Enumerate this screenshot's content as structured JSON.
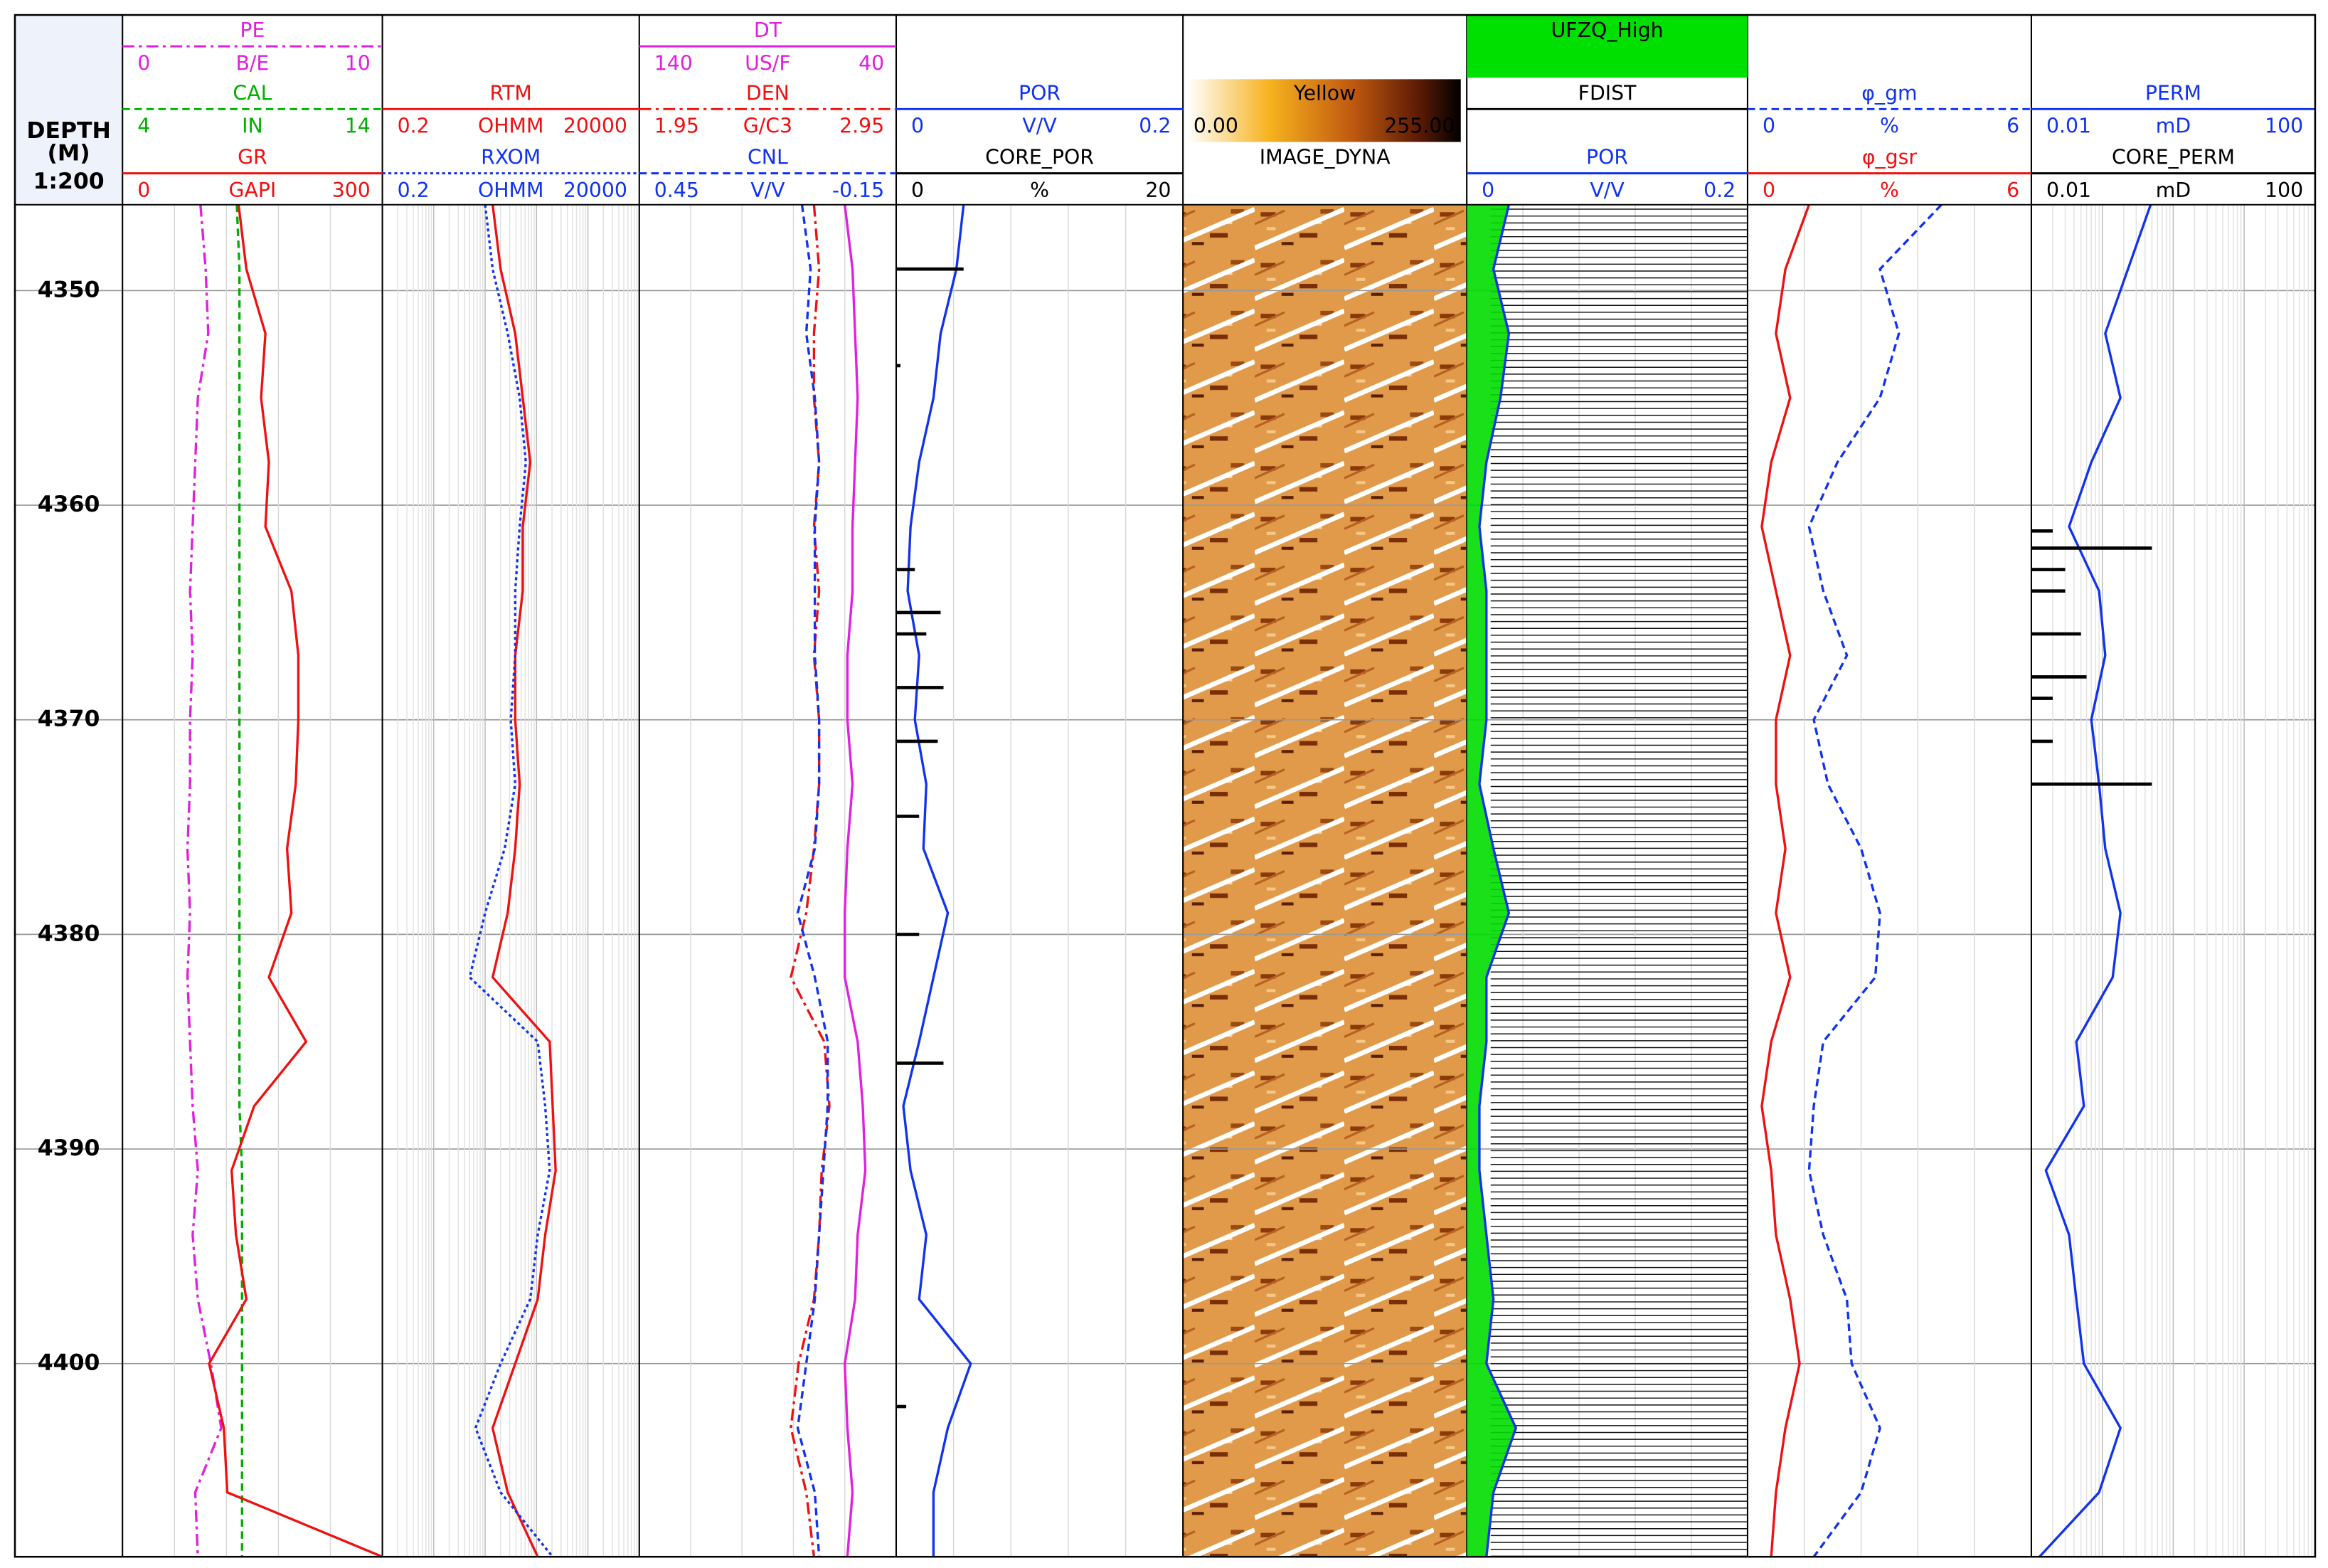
{
  "chart_data": {
    "type": "well-log",
    "depth_header": [
      "DEPTH",
      "(M)",
      "1:200"
    ],
    "ylim": [
      4346,
      4409
    ],
    "yticks": [
      4350,
      4360,
      4370,
      4380,
      4390,
      4400
    ],
    "depth": [
      4346,
      4349,
      4352,
      4355,
      4358,
      4361,
      4364,
      4367,
      4370,
      4373,
      4376,
      4379,
      4382,
      4385,
      4388,
      4391,
      4394,
      4397,
      4400,
      4403,
      4406,
      4409
    ],
    "tracks": [
      {
        "curves": [
          {
            "name": "PE",
            "unit": "B/E",
            "xlim": [
              0,
              10
            ],
            "color": "#e020e0",
            "dash": "dashdot",
            "values": [
              3.0,
              3.2,
              3.3,
              2.9,
              2.8,
              2.7,
              2.6,
              2.7,
              2.6,
              2.6,
              2.5,
              2.6,
              2.5,
              2.6,
              2.7,
              2.9,
              2.7,
              2.9,
              3.4,
              3.8,
              2.8,
              2.9
            ]
          },
          {
            "name": "CAL",
            "unit": "IN",
            "xlim": [
              4,
              14
            ],
            "color": "#00b000",
            "dash": "dashed",
            "values": [
              8.4,
              8.5,
              8.5,
              8.5,
              8.5,
              8.5,
              8.5,
              8.5,
              8.5,
              8.5,
              8.5,
              8.5,
              8.5,
              8.5,
              8.5,
              8.6,
              8.6,
              8.6,
              8.6,
              8.6,
              8.6,
              8.6
            ]
          },
          {
            "name": "GR",
            "unit": "GAPI",
            "xlim": [
              0,
              300
            ],
            "color": "#ee1111",
            "dash": "solid",
            "values": [
              134,
              143,
              165,
              160,
              169,
              165,
              195,
              203,
              203,
              200,
              190,
              195,
              169,
              212,
              152,
              126,
              131,
              143,
              100,
              117,
              121,
              300
            ]
          }
        ]
      },
      {
        "curves": [
          {
            "name": "RTM",
            "unit": "OHMM",
            "xlim": [
              0.2,
              20000
            ],
            "scale": "log",
            "color": "#ee1111",
            "dash": "solid",
            "values": [
              28,
              40,
              77,
              108,
              151,
              108,
              108,
              77,
              77,
              94,
              77,
              55,
              28,
              361,
              412,
              471,
              295,
              211,
              77,
              28,
              55,
              211
            ]
          },
          {
            "name": "RXOM",
            "unit": "OHMM",
            "xlim": [
              0.2,
              20000
            ],
            "scale": "log",
            "color": "#1133ee",
            "dash": "dotted",
            "values": [
              20,
              28,
              55,
              94,
              124,
              94,
              77,
              77,
              63,
              77,
              48,
              20,
              10,
              211,
              295,
              361,
              211,
              151,
              40,
              13,
              40,
              412
            ]
          }
        ]
      },
      {
        "curves": [
          {
            "name": "DT",
            "unit": "US/F",
            "xlim": [
              140,
              40
            ],
            "color": "#e020e0",
            "dash": "solid",
            "values": [
              60,
              57,
              56,
              55,
              56,
              57,
              57,
              59,
              59,
              57,
              59,
              60,
              60,
              55,
              53,
              52,
              55,
              56,
              60,
              59,
              57,
              59
            ]
          },
          {
            "name": "DEN",
            "unit": "G/C3",
            "xlim": [
              1.95,
              2.95
            ],
            "color": "#ee1111",
            "dash": "dashdot",
            "values": [
              2.63,
              2.65,
              2.63,
              2.63,
              2.65,
              2.63,
              2.65,
              2.63,
              2.65,
              2.65,
              2.63,
              2.6,
              2.54,
              2.67,
              2.69,
              2.66,
              2.65,
              2.63,
              2.57,
              2.54,
              2.6,
              2.63
            ]
          },
          {
            "name": "CNL",
            "unit": "V/V",
            "xlim": [
              0.45,
              -0.15
            ],
            "color": "#1133ee",
            "dash": "dashed",
            "values": [
              0.07,
              0.05,
              0.06,
              0.04,
              0.03,
              0.04,
              0.04,
              0.04,
              0.03,
              0.03,
              0.04,
              0.08,
              0.04,
              0.01,
              0.01,
              0.02,
              0.03,
              0.04,
              0.06,
              0.08,
              0.04,
              0.03
            ]
          }
        ]
      },
      {
        "curves": [
          {
            "name": "POR",
            "unit": "V/V",
            "xlim": [
              0,
              0.2
            ],
            "color": "#1133ee",
            "dash": "solid",
            "values": [
              0.047,
              0.042,
              0.031,
              0.026,
              0.016,
              0.01,
              0.008,
              0.016,
              0.013,
              0.021,
              0.019,
              0.036,
              0.026,
              0.016,
              0.005,
              0.01,
              0.021,
              0.016,
              0.052,
              0.036,
              0.026,
              0.026
            ]
          },
          {
            "name": "CORE_POR",
            "unit": "%",
            "xlim": [
              0,
              20
            ],
            "color": "#000000",
            "type": "bars",
            "depth": [
              4349,
              4353.5,
              4363,
              4365,
              4366,
              4368.5,
              4371,
              4374.5,
              4380,
              4386,
              4402
            ],
            "values": [
              4.7,
              0.3,
              1.3,
              3.1,
              2.1,
              3.3,
              2.9,
              1.6,
              1.6,
              3.3,
              0.7
            ]
          }
        ]
      },
      {
        "image": "IMAGE_DYNA",
        "colorbar": {
          "name": "Yellow",
          "range": [
            {
              "value": 0,
              "label": "0.00"
            },
            {
              "value": 255,
              "label": "255.00"
            }
          ]
        }
      },
      {
        "title": "UFZQ_High",
        "title_color": "#00e000",
        "curves": [
          {
            "name": "FDIST",
            "color": "#000000"
          },
          {
            "name": "POR",
            "unit": "V/V",
            "xlim": [
              0,
              0.2
            ],
            "color": "#1133ee",
            "dash": "solid",
            "fill": "#00dd00",
            "values": [
              0.03,
              0.019,
              0.03,
              0.024,
              0.014,
              0.009,
              0.014,
              0.014,
              0.014,
              0.009,
              0.019,
              0.03,
              0.014,
              0.014,
              0.009,
              0.009,
              0.014,
              0.019,
              0.014,
              0.035,
              0.019,
              0.014
            ]
          }
        ]
      },
      {
        "curves": [
          {
            "name": "φ_gm",
            "unit": "%",
            "xlim": [
              0,
              6
            ],
            "color": "#1133ee",
            "dash": "dashed",
            "values": [
              4.1,
              2.8,
              3.2,
              2.8,
              1.9,
              1.3,
              1.6,
              2.1,
              1.4,
              1.7,
              2.4,
              2.8,
              2.7,
              1.6,
              1.4,
              1.3,
              1.6,
              2.1,
              2.2,
              2.8,
              2.4,
              1.4
            ]
          },
          {
            "name": "φ_gsr",
            "unit": "%",
            "xlim": [
              0,
              6
            ],
            "color": "#ee1111",
            "dash": "solid",
            "values": [
              1.3,
              0.8,
              0.6,
              0.9,
              0.5,
              0.3,
              0.6,
              0.9,
              0.6,
              0.6,
              0.8,
              0.6,
              0.9,
              0.5,
              0.3,
              0.5,
              0.6,
              0.9,
              1.1,
              0.8,
              0.6,
              0.5
            ]
          }
        ]
      },
      {
        "curves": [
          {
            "name": "PERM",
            "unit": "mD",
            "xlim": [
              0.01,
              100
            ],
            "scale": "log",
            "color": "#1133ee",
            "dash": "solid",
            "values": [
              0.48,
              0.23,
              0.11,
              0.18,
              0.07,
              0.034,
              0.09,
              0.11,
              0.07,
              0.09,
              0.11,
              0.18,
              0.14,
              0.043,
              0.055,
              0.016,
              0.034,
              0.043,
              0.055,
              0.18,
              0.09,
              0.013
            ]
          },
          {
            "name": "CORE_PERM",
            "unit": "mD",
            "xlim": [
              0.01,
              100
            ],
            "scale": "log",
            "color": "#000000",
            "type": "bars",
            "depth": [
              4361.2,
              4362,
              4363,
              4364,
              4366,
              4368,
              4369,
              4371,
              4373
            ],
            "values": [
              0.02,
              0.5,
              0.03,
              0.03,
              0.05,
              0.06,
              0.02,
              0.02,
              0.5
            ]
          }
        ]
      }
    ]
  }
}
